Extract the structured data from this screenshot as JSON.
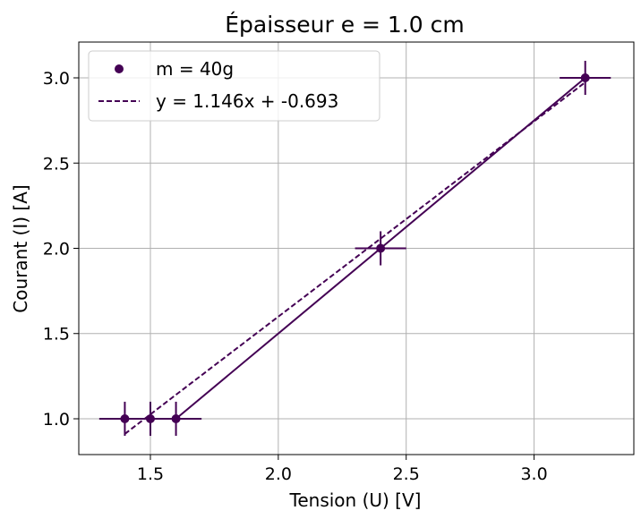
{
  "chart_data": {
    "type": "scatter",
    "title": "Épaisseur e = 1.0 cm",
    "xlabel": "Tension (U) [V]",
    "ylabel": "Courant (I) [A]",
    "xlim": [
      1.22,
      3.39
    ],
    "ylim": [
      0.79,
      3.21
    ],
    "xticks": [
      1.5,
      2.0,
      2.5,
      3.0
    ],
    "xtick_labels": [
      "1.5",
      "2.0",
      "2.5",
      "3.0"
    ],
    "yticks": [
      1.0,
      1.5,
      2.0,
      2.5,
      3.0
    ],
    "ytick_labels": [
      "1.0",
      "1.5",
      "2.0",
      "2.5",
      "3.0"
    ],
    "grid": true,
    "legend_position": "top-left",
    "color": "#440154",
    "series": [
      {
        "name": "m = 40g",
        "kind": "points-with-errorbars",
        "x": [
          1.4,
          1.5,
          1.6,
          2.4,
          3.2
        ],
        "y": [
          1.0,
          1.0,
          1.0,
          2.0,
          3.0
        ],
        "xerr": [
          0.1,
          0.1,
          0.1,
          0.1,
          0.1
        ],
        "yerr": [
          0.1,
          0.1,
          0.1,
          0.1,
          0.1
        ]
      },
      {
        "name": "y = 1.146x + -0.693",
        "kind": "dashed-line",
        "x": [
          1.4,
          1.5,
          1.6,
          2.4,
          3.2
        ],
        "y": [
          0.911,
          1.026,
          1.141,
          2.057,
          2.974
        ]
      }
    ]
  }
}
